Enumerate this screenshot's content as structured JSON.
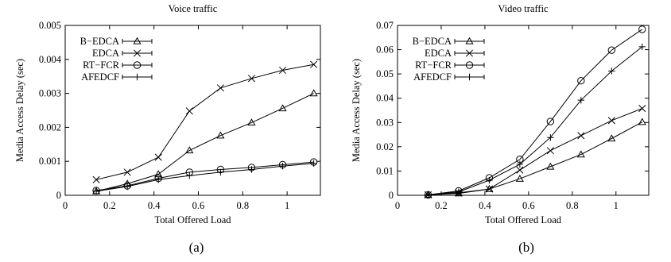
{
  "chart_data": [
    {
      "type": "line",
      "title": "Voice traffic",
      "xlabel": "Total Offered Load",
      "ylabel": "Media Access Delay (sec)",
      "caption": "(a)",
      "xlim": [
        0,
        1.15
      ],
      "ylim": [
        0,
        0.005
      ],
      "xticks": [
        0,
        0.2,
        0.4,
        0.6,
        0.8,
        1
      ],
      "xtick_labels": [
        "0",
        "0.2",
        "0.4",
        "0.6",
        "0.8",
        "1"
      ],
      "yticks": [
        0,
        0.001,
        0.002,
        0.003,
        0.004,
        0.005
      ],
      "ytick_labels": [
        "0",
        "0.001",
        "0.002",
        "0.003",
        "0.004",
        "0.005"
      ],
      "grid": false,
      "legend_position": "top-left",
      "x": [
        0.14,
        0.28,
        0.42,
        0.56,
        0.7,
        0.84,
        0.98,
        1.12
      ],
      "series": [
        {
          "name": "B−EDCA",
          "marker": "triangle",
          "values": [
            0.00012,
            0.00034,
            0.00062,
            0.00132,
            0.00176,
            0.00214,
            0.00256,
            0.003
          ]
        },
        {
          "name": "EDCA",
          "marker": "x",
          "values": [
            0.00046,
            0.00068,
            0.00112,
            0.00248,
            0.00316,
            0.00344,
            0.00368,
            0.00385
          ]
        },
        {
          "name": "RT−FCR",
          "marker": "circle",
          "values": [
            0.00014,
            0.00028,
            0.0005,
            0.00068,
            0.00076,
            0.00082,
            0.0009,
            0.00098
          ]
        },
        {
          "name": "AFEDCF",
          "marker": "plus",
          "values": [
            0.00012,
            0.00026,
            0.00046,
            0.00058,
            0.00068,
            0.00076,
            0.00086,
            0.00094
          ]
        }
      ]
    },
    {
      "type": "line",
      "title": "Video traffic",
      "xlabel": "Total Offered Load",
      "ylabel": "Media Access Delay (sec)",
      "caption": "(b)",
      "xlim": [
        0,
        1.15
      ],
      "ylim": [
        0,
        0.07
      ],
      "xticks": [
        0,
        0.2,
        0.4,
        0.6,
        0.8,
        1
      ],
      "xtick_labels": [
        "0",
        "0.2",
        "0.4",
        "0.6",
        "0.8",
        "1"
      ],
      "yticks": [
        0,
        0.01,
        0.02,
        0.03,
        0.04,
        0.05,
        0.06,
        0.07
      ],
      "ytick_labels": [
        "0",
        "0.01",
        "0.02",
        "0.03",
        "0.04",
        "0.05",
        "0.06",
        "0.07"
      ],
      "grid": false,
      "legend_position": "top-left",
      "x": [
        0.14,
        0.28,
        0.42,
        0.56,
        0.7,
        0.84,
        0.98,
        1.12
      ],
      "series": [
        {
          "name": "B−EDCA",
          "marker": "triangle",
          "values": [
            0.0002,
            0.0008,
            0.0026,
            0.0068,
            0.0118,
            0.0168,
            0.0234,
            0.0302
          ]
        },
        {
          "name": "EDCA",
          "marker": "x",
          "values": [
            0.0002,
            0.001,
            0.0026,
            0.0104,
            0.0184,
            0.0246,
            0.0308,
            0.0358
          ]
        },
        {
          "name": "RT−FCR",
          "marker": "circle",
          "values": [
            0.0002,
            0.0018,
            0.0072,
            0.0148,
            0.0304,
            0.0472,
            0.0598,
            0.0684
          ]
        },
        {
          "name": "AFEDCF",
          "marker": "plus",
          "values": [
            0.0002,
            0.0014,
            0.0062,
            0.0128,
            0.0238,
            0.0392,
            0.0512,
            0.0612
          ]
        }
      ]
    }
  ]
}
